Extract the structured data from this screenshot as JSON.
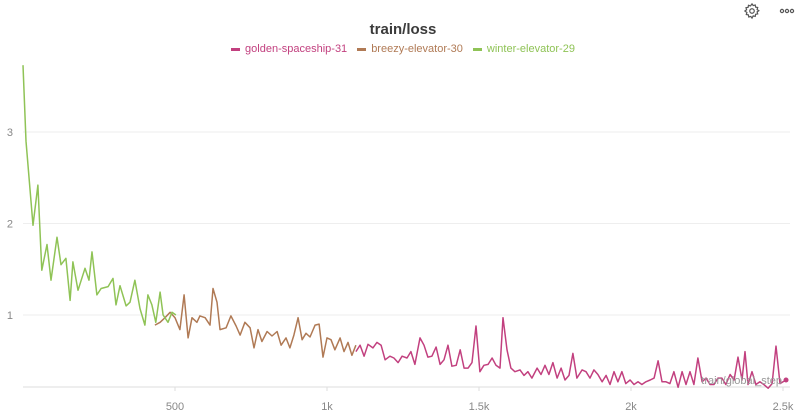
{
  "toolbar": {
    "settings_icon": "gear-icon",
    "more_icon": "ellipsis-icon"
  },
  "chart_data": {
    "type": "line",
    "title": "train/loss",
    "xlabel": "train/global_step",
    "ylabel": "",
    "xlim": [
      0,
      2520
    ],
    "ylim": [
      0.2,
      3.8
    ],
    "xticks": [
      500,
      1000,
      1500,
      2000,
      2500
    ],
    "xtick_labels": [
      "500",
      "1k",
      "1.5k",
      "2k",
      "2.5k"
    ],
    "yticks": [
      1,
      2,
      3
    ],
    "ytick_labels": [
      "1",
      "2",
      "3"
    ],
    "grid": true,
    "legend_position": "top-center",
    "series": [
      {
        "name": "golden-spaceship-31",
        "color": "#c2407f",
        "points": [
          [
            1095,
            0.6
          ],
          [
            1109,
            0.67
          ],
          [
            1122,
            0.55
          ],
          [
            1135,
            0.68
          ],
          [
            1151,
            0.64
          ],
          [
            1164,
            0.7
          ],
          [
            1178,
            0.67
          ],
          [
            1191,
            0.51
          ],
          [
            1207,
            0.55
          ],
          [
            1220,
            0.53
          ],
          [
            1234,
            0.48
          ],
          [
            1247,
            0.55
          ],
          [
            1263,
            0.53
          ],
          [
            1276,
            0.6
          ],
          [
            1289,
            0.46
          ],
          [
            1306,
            0.75
          ],
          [
            1319,
            0.67
          ],
          [
            1332,
            0.54
          ],
          [
            1345,
            0.55
          ],
          [
            1359,
            0.65
          ],
          [
            1372,
            0.46
          ],
          [
            1385,
            0.51
          ],
          [
            1398,
            0.67
          ],
          [
            1411,
            0.44
          ],
          [
            1425,
            0.45
          ],
          [
            1438,
            0.62
          ],
          [
            1451,
            0.42
          ],
          [
            1464,
            0.42
          ],
          [
            1477,
            0.48
          ],
          [
            1490,
            0.88
          ],
          [
            1503,
            0.38
          ],
          [
            1516,
            0.45
          ],
          [
            1530,
            0.46
          ],
          [
            1543,
            0.53
          ],
          [
            1556,
            0.45
          ],
          [
            1569,
            0.42
          ],
          [
            1579,
            0.97
          ],
          [
            1592,
            0.62
          ],
          [
            1605,
            0.42
          ],
          [
            1618,
            0.38
          ],
          [
            1635,
            0.4
          ],
          [
            1648,
            0.34
          ],
          [
            1661,
            0.38
          ],
          [
            1674,
            0.31
          ],
          [
            1691,
            0.42
          ],
          [
            1704,
            0.35
          ],
          [
            1717,
            0.45
          ],
          [
            1730,
            0.35
          ],
          [
            1743,
            0.48
          ],
          [
            1757,
            0.31
          ],
          [
            1770,
            0.42
          ],
          [
            1783,
            0.29
          ],
          [
            1796,
            0.34
          ],
          [
            1809,
            0.58
          ],
          [
            1822,
            0.31
          ],
          [
            1839,
            0.4
          ],
          [
            1852,
            0.38
          ],
          [
            1865,
            0.31
          ],
          [
            1878,
            0.4
          ],
          [
            1891,
            0.35
          ],
          [
            1905,
            0.27
          ],
          [
            1918,
            0.34
          ],
          [
            1931,
            0.24
          ],
          [
            1944,
            0.38
          ],
          [
            1957,
            0.27
          ],
          [
            1970,
            0.38
          ],
          [
            1983,
            0.25
          ],
          [
            1997,
            0.29
          ],
          [
            2010,
            0.24
          ],
          [
            2023,
            0.27
          ],
          [
            2036,
            0.24
          ],
          [
            2049,
            0.27
          ],
          [
            2063,
            0.29
          ],
          [
            2076,
            0.31
          ],
          [
            2089,
            0.5
          ],
          [
            2102,
            0.27
          ],
          [
            2115,
            0.27
          ],
          [
            2128,
            0.25
          ],
          [
            2141,
            0.38
          ],
          [
            2155,
            0.21
          ],
          [
            2168,
            0.38
          ],
          [
            2181,
            0.24
          ],
          [
            2194,
            0.38
          ],
          [
            2207,
            0.24
          ],
          [
            2220,
            0.53
          ],
          [
            2234,
            0.27
          ],
          [
            2247,
            0.31
          ],
          [
            2260,
            0.24
          ],
          [
            2273,
            0.24
          ],
          [
            2286,
            0.31
          ],
          [
            2299,
            0.31
          ],
          [
            2312,
            0.24
          ],
          [
            2326,
            0.35
          ],
          [
            2339,
            0.29
          ],
          [
            2352,
            0.54
          ],
          [
            2365,
            0.29
          ],
          [
            2375,
            0.6
          ],
          [
            2385,
            0.24
          ],
          [
            2398,
            0.38
          ],
          [
            2411,
            0.24
          ],
          [
            2424,
            0.27
          ],
          [
            2437,
            0.24
          ],
          [
            2451,
            0.2
          ],
          [
            2464,
            0.25
          ],
          [
            2477,
            0.66
          ],
          [
            2490,
            0.25
          ],
          [
            2510,
            0.29
          ]
        ]
      },
      {
        "name": "breezy-elevator-30",
        "color": "#b07a55",
        "points": [
          [
            434,
            0.89
          ],
          [
            451,
            0.92
          ],
          [
            467,
            0.97
          ],
          [
            484,
            1.03
          ],
          [
            500,
            0.97
          ],
          [
            516,
            0.84
          ],
          [
            530,
            1.22
          ],
          [
            543,
            0.75
          ],
          [
            556,
            0.97
          ],
          [
            572,
            0.92
          ],
          [
            582,
            0.99
          ],
          [
            599,
            0.97
          ],
          [
            615,
            0.89
          ],
          [
            625,
            1.29
          ],
          [
            638,
            1.14
          ],
          [
            648,
            0.84
          ],
          [
            668,
            0.86
          ],
          [
            684,
            0.99
          ],
          [
            701,
            0.88
          ],
          [
            714,
            0.78
          ],
          [
            730,
            0.92
          ],
          [
            747,
            0.86
          ],
          [
            760,
            0.64
          ],
          [
            773,
            0.84
          ],
          [
            786,
            0.71
          ],
          [
            803,
            0.82
          ],
          [
            819,
            0.77
          ],
          [
            836,
            0.82
          ],
          [
            849,
            0.67
          ],
          [
            865,
            0.75
          ],
          [
            878,
            0.64
          ],
          [
            891,
            0.78
          ],
          [
            905,
            0.97
          ],
          [
            918,
            0.73
          ],
          [
            931,
            0.8
          ],
          [
            944,
            0.76
          ],
          [
            961,
            0.89
          ],
          [
            974,
            0.9
          ],
          [
            987,
            0.54
          ],
          [
            1000,
            0.75
          ],
          [
            1013,
            0.73
          ],
          [
            1026,
            0.62
          ],
          [
            1043,
            0.75
          ],
          [
            1056,
            0.6
          ],
          [
            1069,
            0.7
          ],
          [
            1082,
            0.56
          ],
          [
            1095,
            0.67
          ]
        ]
      },
      {
        "name": "winter-elevator-29",
        "color": "#8fc356",
        "points": [
          [
            0,
            3.73
          ],
          [
            10,
            2.9
          ],
          [
            33,
            1.98
          ],
          [
            49,
            2.42
          ],
          [
            62,
            1.49
          ],
          [
            79,
            1.77
          ],
          [
            92,
            1.38
          ],
          [
            112,
            1.85
          ],
          [
            125,
            1.55
          ],
          [
            141,
            1.62
          ],
          [
            155,
            1.16
          ],
          [
            164,
            1.58
          ],
          [
            181,
            1.27
          ],
          [
            204,
            1.51
          ],
          [
            217,
            1.38
          ],
          [
            227,
            1.69
          ],
          [
            243,
            1.22
          ],
          [
            257,
            1.29
          ],
          [
            280,
            1.31
          ],
          [
            296,
            1.4
          ],
          [
            306,
            1.11
          ],
          [
            319,
            1.32
          ],
          [
            339,
            1.1
          ],
          [
            352,
            1.14
          ],
          [
            368,
            1.38
          ],
          [
            385,
            1.07
          ],
          [
            401,
            0.89
          ],
          [
            411,
            1.22
          ],
          [
            424,
            1.11
          ],
          [
            437,
            0.92
          ],
          [
            451,
            1.25
          ],
          [
            461,
            1.0
          ],
          [
            477,
            0.92
          ],
          [
            490,
            1.03
          ],
          [
            503,
            1.0
          ]
        ]
      }
    ]
  }
}
